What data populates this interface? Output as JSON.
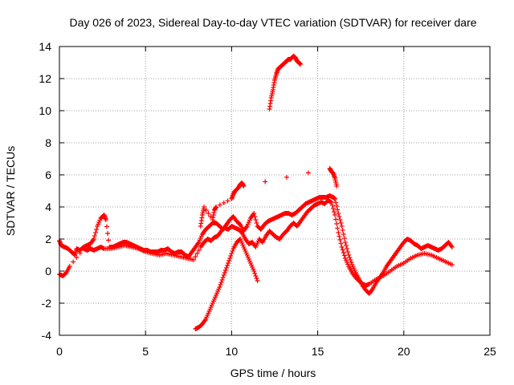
{
  "chart_data": {
    "type": "scatter",
    "title": "Day 026 of 2023, Sidereal Day-to-day VTEC variation (SDTVAR) for receiver dare",
    "xlabel": "GPS time / hours",
    "ylabel": "SDTVAR / TECUs",
    "xlim": [
      0,
      25
    ],
    "ylim": [
      -4,
      14
    ],
    "x_ticks": [
      0,
      5,
      10,
      15,
      20,
      25
    ],
    "y_ticks": [
      -4,
      -2,
      0,
      2,
      4,
      6,
      8,
      10,
      12,
      14
    ],
    "grid": true,
    "marker": "+",
    "series": [
      {
        "name": "main",
        "color": "#ff0000",
        "x": [
          0.0,
          0.1,
          0.3,
          0.5,
          0.7,
          0.9,
          1.0,
          1.2,
          1.4,
          1.6,
          1.8,
          2.0,
          2.2,
          2.4,
          2.6,
          2.7,
          2.9,
          3.1,
          3.3,
          3.5,
          3.7,
          3.9,
          4.1,
          4.3,
          4.5,
          4.7,
          4.9,
          5.1,
          5.3,
          5.5,
          5.7,
          5.9,
          6.1,
          6.3,
          6.5,
          6.7,
          6.9,
          7.1,
          7.3,
          7.5,
          7.7,
          7.9,
          8.1,
          8.3,
          8.5,
          8.7,
          8.9,
          9.1,
          9.3,
          9.5,
          9.7,
          9.9,
          10.1,
          10.3,
          10.5,
          10.7,
          10.9,
          11.1,
          11.3,
          11.5,
          11.7,
          11.9,
          12.1,
          12.3,
          12.5,
          12.7,
          12.9,
          13.1,
          13.3,
          13.5,
          13.7,
          13.9,
          14.1,
          14.3,
          14.5,
          14.7,
          14.9,
          15.1,
          15.3,
          15.5,
          15.7,
          15.9,
          16.0,
          16.2,
          16.4,
          16.6,
          16.8,
          17.0,
          17.2,
          17.4,
          17.6,
          17.8,
          18.0,
          18.2,
          18.4,
          18.6,
          18.8,
          19.0,
          19.2,
          19.4,
          19.6,
          19.8,
          20.0,
          20.2,
          20.4,
          20.6,
          20.8,
          21.0,
          21.2,
          21.4,
          21.6,
          21.8,
          22.0,
          22.2,
          22.4,
          22.6,
          22.8
        ],
        "y": [
          1.9,
          1.6,
          1.5,
          1.4,
          1.2,
          1.0,
          1.4,
          1.3,
          1.5,
          1.6,
          1.7,
          2.0,
          2.8,
          3.3,
          3.5,
          3.2,
          1.5,
          1.5,
          1.6,
          1.7,
          1.8,
          1.8,
          1.7,
          1.6,
          1.5,
          1.4,
          1.3,
          1.3,
          1.2,
          1.2,
          1.2,
          1.3,
          1.3,
          1.4,
          1.2,
          1.1,
          1.2,
          1.2,
          1.0,
          0.9,
          1.2,
          1.5,
          1.8,
          2.3,
          2.6,
          2.8,
          3.0,
          3.0,
          2.8,
          2.6,
          2.9,
          3.2,
          3.4,
          3.1,
          2.9,
          2.5,
          2.8,
          3.3,
          3.6,
          2.8,
          2.6,
          2.9,
          3.1,
          3.2,
          3.3,
          3.4,
          3.5,
          3.6,
          3.6,
          3.5,
          3.6,
          3.8,
          4.0,
          4.2,
          4.3,
          4.4,
          4.5,
          4.6,
          4.6,
          4.6,
          4.7,
          4.6,
          4.5,
          3.6,
          2.8,
          1.8,
          1.0,
          0.4,
          -0.1,
          -0.5,
          -0.9,
          -1.2,
          -1.4,
          -1.1,
          -0.7,
          -0.4,
          -0.1,
          0.3,
          0.6,
          0.9,
          1.2,
          1.5,
          1.8,
          2.0,
          1.9,
          1.7,
          1.6,
          1.4,
          1.5,
          1.6,
          1.5,
          1.4,
          1.3,
          1.4,
          1.6,
          1.8,
          1.5
        ]
      },
      {
        "name": "secondary",
        "color": "#ff0000",
        "x": [
          0.0,
          0.2,
          0.4,
          0.6,
          1.4,
          1.6,
          1.8,
          2.0,
          2.2,
          2.4,
          2.6,
          3.0,
          3.4,
          3.8,
          4.2,
          4.6,
          5.0,
          5.4,
          5.8,
          6.2,
          6.6,
          7.0,
          7.4,
          7.8,
          8.2,
          8.4,
          8.6,
          8.8,
          9.0,
          9.2,
          9.4,
          9.6,
          9.8,
          10.0,
          10.2,
          10.4,
          10.6,
          10.8,
          11.0,
          11.2,
          11.4,
          11.6,
          11.8,
          12.0,
          12.2,
          12.4,
          12.6,
          12.8,
          13.0,
          13.2,
          13.4,
          13.6,
          13.8,
          14.0,
          14.2,
          14.4,
          14.6,
          14.8,
          15.0,
          15.2,
          15.4,
          15.6,
          15.8,
          16.0,
          16.2,
          16.4,
          16.6,
          16.8,
          17.0,
          17.2,
          17.4,
          17.6,
          17.8,
          18.0,
          18.4,
          18.8,
          19.2,
          19.6,
          20.0,
          20.4,
          20.8,
          21.2,
          21.6,
          22.0,
          22.4,
          22.8
        ],
        "y": [
          -0.2,
          -0.3,
          -0.1,
          0.3,
          1.4,
          1.3,
          1.4,
          1.3,
          1.4,
          1.5,
          1.4,
          1.4,
          1.5,
          1.6,
          1.5,
          1.4,
          1.2,
          1.1,
          1.0,
          1.1,
          1.0,
          0.9,
          0.8,
          0.7,
          1.5,
          1.8,
          2.0,
          1.9,
          2.1,
          2.2,
          2.5,
          2.7,
          2.6,
          2.8,
          2.7,
          2.6,
          2.4,
          2.0,
          1.7,
          1.8,
          1.5,
          2.0,
          1.8,
          2.2,
          2.5,
          2.3,
          2.1,
          2.0,
          2.3,
          2.5,
          2.8,
          3.0,
          2.8,
          3.1,
          3.4,
          3.7,
          3.9,
          4.1,
          4.2,
          4.3,
          4.2,
          4.4,
          4.3,
          3.5,
          2.4,
          1.5,
          0.8,
          0.3,
          -0.1,
          -0.4,
          -0.6,
          -0.8,
          -0.9,
          -0.8,
          -0.5,
          -0.3,
          0.0,
          0.3,
          0.5,
          0.8,
          1.0,
          1.1,
          1.0,
          0.8,
          0.6,
          0.4
        ]
      },
      {
        "name": "spike-peaks",
        "color": "#ff0000",
        "x": [
          8.2,
          8.3,
          8.4,
          8.9,
          9.0,
          9.1,
          10.0,
          10.1,
          10.2,
          10.4,
          10.5,
          10.6,
          10.7,
          15.7,
          15.8,
          15.9,
          16.0,
          16.1
        ],
        "y": [
          2.8,
          3.5,
          4.0,
          3.2,
          3.8,
          4.0,
          4.5,
          4.8,
          5.0,
          5.2,
          5.4,
          5.5,
          5.3,
          6.4,
          6.2,
          6.1,
          5.8,
          5.3
        ]
      },
      {
        "name": "rising-track",
        "color": "#ff0000",
        "x": [
          7.9,
          8.1,
          8.3,
          8.5,
          8.7,
          8.9,
          9.1,
          9.3,
          9.5,
          9.7,
          9.9,
          10.1,
          10.3,
          10.5,
          10.7,
          10.9,
          11.1,
          11.3,
          11.5
        ],
        "y": [
          -3.6,
          -3.5,
          -3.3,
          -3.0,
          -2.5,
          -2.0,
          -1.5,
          -1.0,
          -0.4,
          0.2,
          0.8,
          1.4,
          1.8,
          2.0,
          1.5,
          1.0,
          0.5,
          0.0,
          -0.6
        ]
      },
      {
        "name": "upper-track",
        "color": "#ff0000",
        "x": [
          12.2,
          12.3,
          12.4,
          12.5,
          12.6,
          12.7,
          12.8,
          12.9,
          13.0,
          13.1,
          13.2,
          13.3,
          13.4,
          13.5,
          13.6,
          13.7,
          13.8,
          13.9,
          14.0
        ],
        "y": [
          10.1,
          10.8,
          11.3,
          11.9,
          12.3,
          12.6,
          12.7,
          12.8,
          12.9,
          13.0,
          13.1,
          13.2,
          13.2,
          13.3,
          13.4,
          13.3,
          13.1,
          13.0,
          12.9
        ]
      }
    ]
  }
}
